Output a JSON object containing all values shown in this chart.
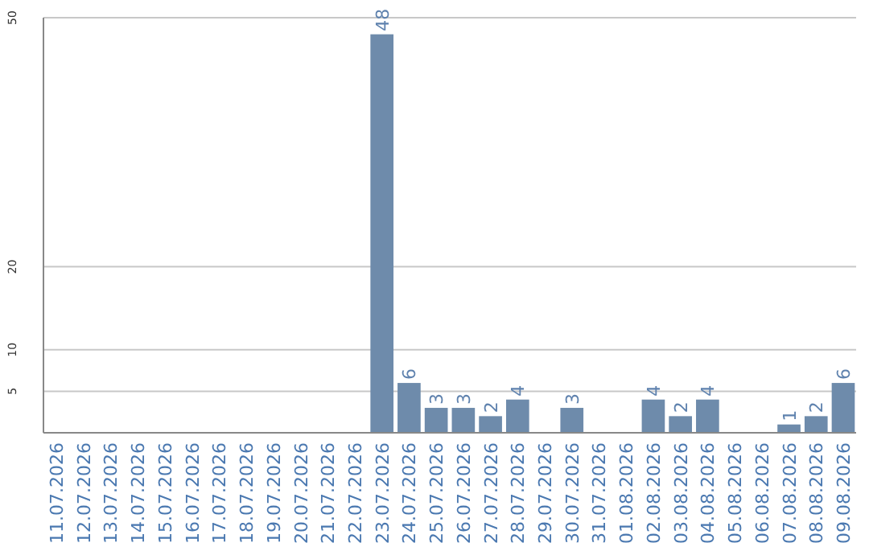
{
  "chart_data": {
    "type": "bar",
    "categories": [
      "11.07.2026",
      "12.07.2026",
      "13.07.2026",
      "14.07.2026",
      "15.07.2026",
      "16.07.2026",
      "17.07.2026",
      "18.07.2026",
      "19.07.2026",
      "20.07.2026",
      "21.07.2026",
      "22.07.2026",
      "23.07.2026",
      "24.07.2026",
      "25.07.2026",
      "26.07.2026",
      "27.07.2026",
      "28.07.2026",
      "29.07.2026",
      "30.07.2026",
      "31.07.2026",
      "01.08.2026",
      "02.08.2026",
      "03.08.2026",
      "04.08.2026",
      "05.08.2026",
      "06.08.2026",
      "07.08.2026",
      "08.08.2026",
      "09.08.2026"
    ],
    "values": [
      null,
      null,
      null,
      null,
      null,
      null,
      null,
      null,
      null,
      null,
      null,
      null,
      48,
      6,
      3,
      3,
      2,
      4,
      null,
      3,
      null,
      null,
      4,
      2,
      4,
      null,
      null,
      1,
      2,
      6
    ],
    "color": "#6e8bab",
    "ylim": [
      0,
      50
    ],
    "yticks": [
      5,
      10,
      20,
      50
    ],
    "grid": "y",
    "data_labels": true
  }
}
